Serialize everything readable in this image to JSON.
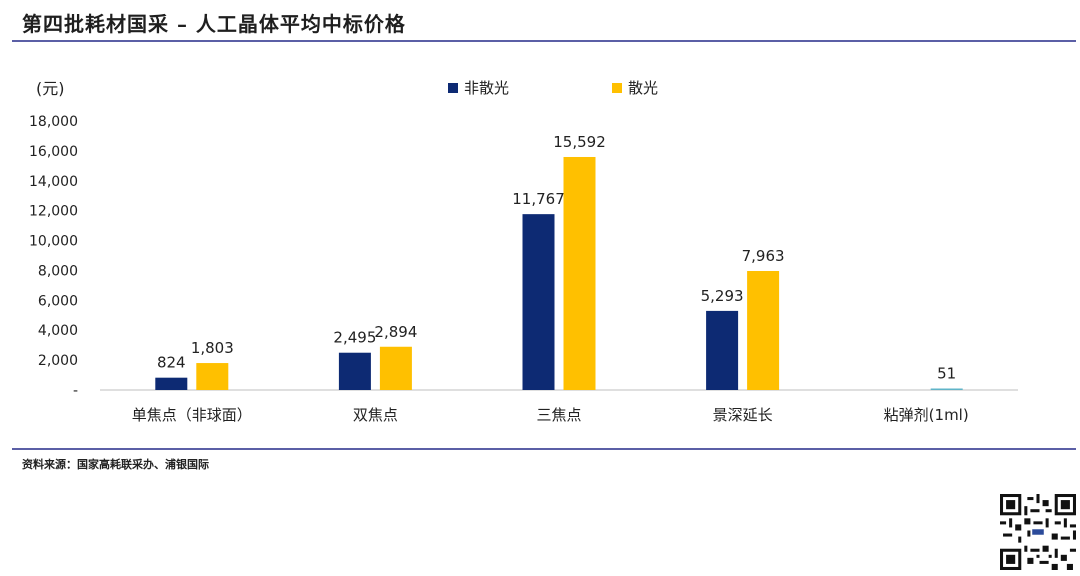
{
  "header": {
    "title": "第四批耗材国采 – 人工晶体平均中标价格"
  },
  "footer": {
    "source": "资料来源：国家高耗联采办、浦银国际"
  },
  "colors": {
    "series1": "#0d2a73",
    "series2": "#ffc000",
    "series2_small": "#5fb4c8",
    "rule": "#5b5fa6"
  },
  "chart_data": {
    "type": "bar",
    "title": "",
    "xlabel": "",
    "ylabel": "(元)",
    "ylim": [
      0,
      18000
    ],
    "yticks": [
      0,
      2000,
      4000,
      6000,
      8000,
      10000,
      12000,
      14000,
      16000,
      18000
    ],
    "ytick_labels": [
      "-",
      "2,000",
      "4,000",
      "6,000",
      "8,000",
      "10,000",
      "12,000",
      "14,000",
      "16,000",
      "18,000"
    ],
    "categories": [
      "单焦点（非球面）",
      "双焦点",
      "三焦点",
      "景深延长",
      "粘弹剂(1ml)"
    ],
    "series": [
      {
        "name": "非散光",
        "values": [
          824,
          2495,
          11767,
          5293,
          null
        ],
        "labels": [
          "824",
          "2,495",
          "11,767",
          "5,293",
          ""
        ]
      },
      {
        "name": "散光",
        "values": [
          1803,
          2894,
          15592,
          7963,
          51
        ],
        "labels": [
          "1,803",
          "2,894",
          "15,592",
          "7,963",
          "51"
        ]
      }
    ],
    "grid": false,
    "legend": "top-center"
  }
}
